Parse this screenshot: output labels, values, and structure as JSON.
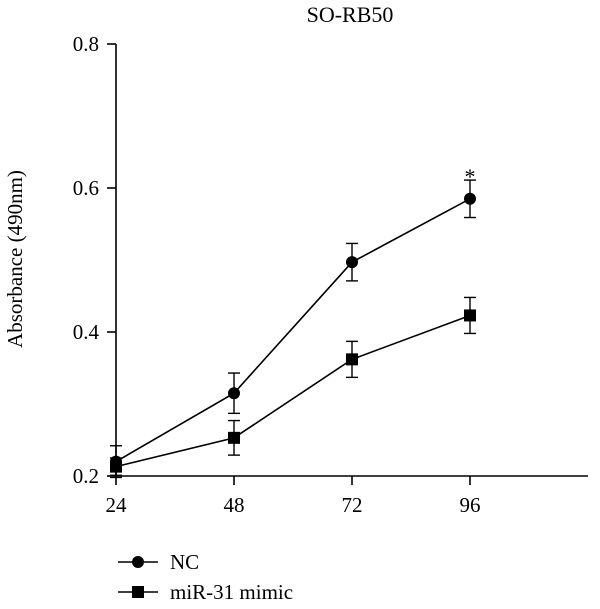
{
  "chart_data": {
    "type": "line",
    "title": "SO-RB50",
    "xlabel": "",
    "ylabel": "Absorbance (490nm)",
    "x": [
      24,
      48,
      72,
      96
    ],
    "xlim": [
      24,
      120
    ],
    "ylim": [
      0.2,
      0.8
    ],
    "y_ticks": [
      "0.2",
      "0.4",
      "0.6",
      "0.8"
    ],
    "x_ticks": [
      "24",
      "48",
      "72",
      "96"
    ],
    "grid": false,
    "legend_position": "bottom-left",
    "series": [
      {
        "name": "NC",
        "marker": "circle",
        "values": [
          0.22,
          0.315,
          0.497,
          0.585
        ],
        "error": [
          0.022,
          0.028,
          0.026,
          0.026
        ]
      },
      {
        "name": "miR-31 mimic",
        "marker": "square",
        "values": [
          0.213,
          0.253,
          0.362,
          0.423
        ],
        "error": [
          0.012,
          0.024,
          0.025,
          0.025
        ]
      }
    ],
    "annotations": [
      {
        "text": "*",
        "x": 96,
        "y": 0.625
      }
    ]
  }
}
